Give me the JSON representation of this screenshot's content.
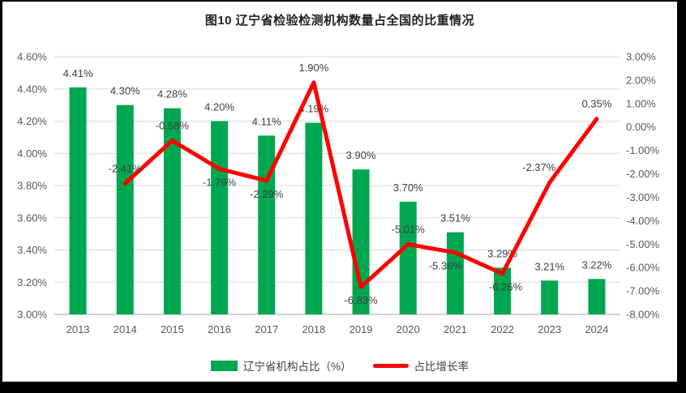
{
  "chart_data": {
    "type": "bar",
    "combo": "bar+line",
    "title": "图10 辽宁省检验检测机构数量占全国的比重情况",
    "categories": [
      "2013",
      "2014",
      "2015",
      "2016",
      "2017",
      "2018",
      "2019",
      "2020",
      "2021",
      "2022",
      "2023",
      "2024"
    ],
    "series": [
      {
        "name": "辽宁省机构占比（%）",
        "type": "bar",
        "axis": "left",
        "color": "#00A650",
        "values": [
          4.41,
          4.3,
          4.28,
          4.2,
          4.11,
          4.19,
          3.9,
          3.7,
          3.51,
          3.29,
          3.21,
          3.22
        ]
      },
      {
        "name": "占比增长率",
        "type": "line",
        "axis": "right",
        "color": "#FF0000",
        "values": [
          null,
          -2.41,
          -0.58,
          -1.79,
          -2.29,
          1.9,
          -6.83,
          -5.01,
          -5.36,
          -6.26,
          -2.37,
          0.35
        ]
      }
    ],
    "left_axis": {
      "min": 3.0,
      "max": 4.6,
      "step": 0.2,
      "format": "0.00%"
    },
    "right_axis": {
      "min": -8.0,
      "max": 3.0,
      "step": 1.0,
      "format": "0.00%"
    },
    "layout": {
      "grid": true,
      "legend_position": "bottom",
      "grid_color": "#D9D9D9",
      "axis_line_color": "#A6A6A6",
      "tick_label_color": "#595959",
      "data_label_color": "#404040",
      "line_label_sides": [
        null,
        "above",
        "above",
        "below",
        "below",
        "above",
        "below",
        "above",
        "below",
        "below",
        "above",
        "above"
      ],
      "line_label_dx": [
        0,
        0,
        0,
        0,
        0,
        0,
        0,
        0,
        -12,
        4,
        -13,
        0
      ]
    }
  }
}
